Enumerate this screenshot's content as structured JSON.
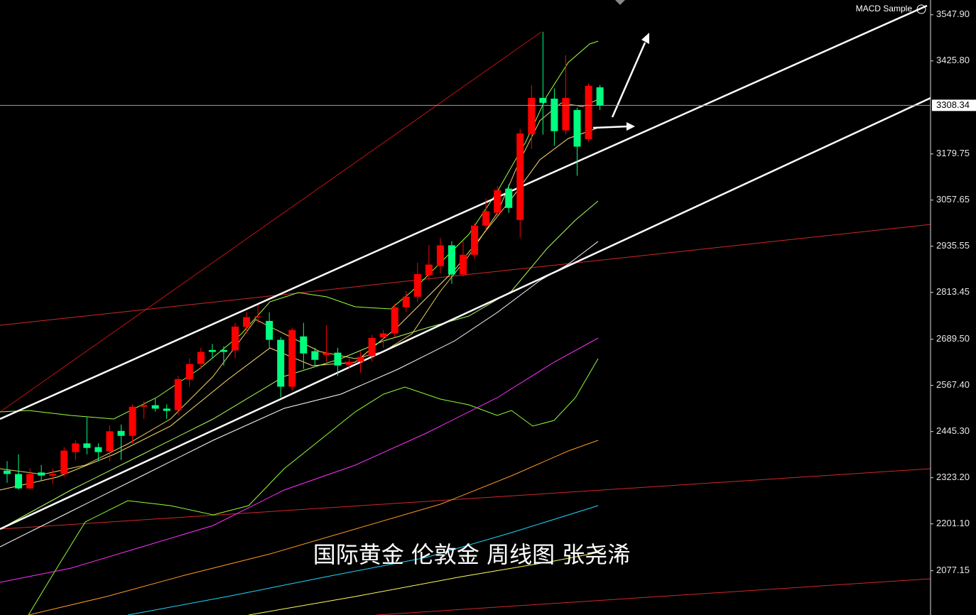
{
  "chart_data": {
    "type": "candlestick",
    "indicator_label": "MACD Sample",
    "watermark": "国际黄金 伦敦金 周线图 张尧浠",
    "up_color": "#ff0000",
    "down_color": "#00ff7f",
    "last_price": 3308.34,
    "ylim": [
      1960,
      3587
    ],
    "yticks": [
      {
        "value": 3547.9,
        "label": "3547.90"
      },
      {
        "value": 3425.8,
        "label": "3425.80"
      },
      3179.75,
      3057.65,
      2935.55,
      2813.45,
      {
        "value": 2689.5,
        "label": "2689.50"
      },
      {
        "value": 2567.4,
        "label": "2567.40"
      },
      {
        "value": 2445.3,
        "label": "2445.30"
      },
      {
        "value": 2323.2,
        "label": "2323.20"
      },
      {
        "value": 2201.1,
        "label": "2201.10"
      },
      2077.15
    ],
    "open": [
      2342,
      2333,
      2295,
      2337,
      2329,
      2333,
      2391,
      2414,
      2404,
      2393,
      2447,
      2434,
      2511,
      2515,
      2506,
      2502,
      2583,
      2624,
      2661,
      2661,
      2660,
      2722,
      2748,
      2738,
      2688,
      2564,
      2697,
      2658,
      2648,
      2654,
      2622,
      2630,
      2645,
      2695,
      2705,
      2774,
      2802,
      2859,
      2883,
      2938,
      2861,
      2913,
      2990,
      3024,
      3088,
      3005,
      3232,
      3328,
      3326,
      3242,
      3296,
      3219,
      3356
    ],
    "high": [
      2367,
      2385,
      2348,
      2357,
      2348,
      2404,
      2423,
      2483,
      2414,
      2461,
      2464,
      2517,
      2526,
      2532,
      2517,
      2592,
      2639,
      2667,
      2677,
      2671,
      2733,
      2761,
      2780,
      2761,
      2695,
      2720,
      2733,
      2667,
      2727,
      2667,
      2639,
      2658,
      2701,
      2714,
      2784,
      2817,
      2892,
      2939,
      2958,
      2949,
      2949,
      2996,
      3062,
      3095,
      3099,
      3246,
      3362,
      3503,
      3353,
      3441,
      3302,
      3366,
      3362
    ],
    "low": [
      2310,
      2292,
      2292,
      2314,
      2307,
      2325,
      2370,
      2385,
      2367,
      2367,
      2370,
      2414,
      2479,
      2498,
      2479,
      2489,
      2564,
      2611,
      2639,
      2620,
      2639,
      2705,
      2733,
      2667,
      2536,
      2554,
      2611,
      2620,
      2630,
      2592,
      2611,
      2601,
      2630,
      2667,
      2695,
      2761,
      2789,
      2846,
      2864,
      2836,
      2855,
      2902,
      2977,
      3015,
      3024,
      2958,
      3193,
      3231,
      3202,
      3231,
      3122,
      3212,
      3296
    ],
    "close": [
      2333,
      2295,
      2333,
      2329,
      2333,
      2395,
      2414,
      2402,
      2391,
      2446,
      2434,
      2511,
      2515,
      2506,
      2500,
      2584,
      2624,
      2656,
      2656,
      2656,
      2723,
      2748,
      2750,
      2688,
      2564,
      2714,
      2652,
      2635,
      2654,
      2620,
      2630,
      2643,
      2693,
      2705,
      2774,
      2802,
      2862,
      2887,
      2938,
      2861,
      2913,
      2990,
      3028,
      3084,
      3037,
      3234,
      3328,
      3315,
      3240,
      3328,
      3199,
      3360,
      3309
    ]
  }
}
